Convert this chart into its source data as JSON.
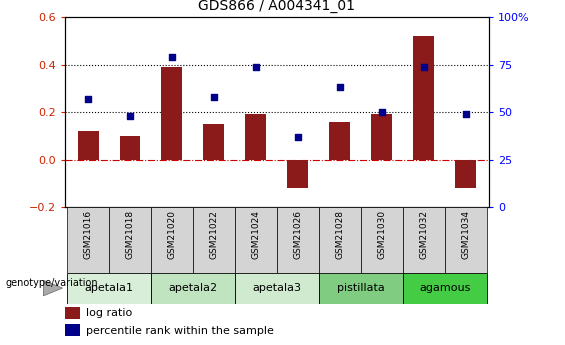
{
  "title": "GDS866 / A004341_01",
  "samples": [
    "GSM21016",
    "GSM21018",
    "GSM21020",
    "GSM21022",
    "GSM21024",
    "GSM21026",
    "GSM21028",
    "GSM21030",
    "GSM21032",
    "GSM21034"
  ],
  "log_ratio": [
    0.12,
    0.1,
    0.39,
    0.15,
    0.19,
    -0.12,
    0.16,
    0.19,
    0.52,
    -0.12
  ],
  "percentile": [
    57,
    48,
    79,
    58,
    74,
    37,
    63,
    50,
    74,
    49
  ],
  "bar_color": "#8B1A1A",
  "dot_color": "#00008B",
  "ylim_left": [
    -0.2,
    0.6
  ],
  "ylim_right": [
    0,
    100
  ],
  "yticks_left": [
    -0.2,
    0.0,
    0.2,
    0.4,
    0.6
  ],
  "yticks_right": [
    0,
    25,
    50,
    75,
    100
  ],
  "ytick_labels_right": [
    "0",
    "25",
    "50",
    "75",
    "100%"
  ],
  "hlines": [
    0.0,
    0.2,
    0.4
  ],
  "hline_colors": [
    "#cc0000",
    "#000000",
    "#000000"
  ],
  "hline_styles": [
    "dashdot",
    "dotted",
    "dotted"
  ],
  "groups": [
    {
      "label": "apetala1",
      "start": 0,
      "end": 2,
      "color": "#d8eed8"
    },
    {
      "label": "apetala2",
      "start": 2,
      "end": 4,
      "color": "#c0e4c0"
    },
    {
      "label": "apetala3",
      "start": 4,
      "end": 6,
      "color": "#d0ead0"
    },
    {
      "label": "pistillata",
      "start": 6,
      "end": 8,
      "color": "#80cc80"
    },
    {
      "label": "agamous",
      "start": 8,
      "end": 10,
      "color": "#44cc44"
    }
  ],
  "sample_cell_color": "#d4d4d4",
  "legend_bar_label": "log ratio",
  "legend_dot_label": "percentile rank within the sample",
  "genotype_label": "genotype/variation",
  "bar_width": 0.5
}
